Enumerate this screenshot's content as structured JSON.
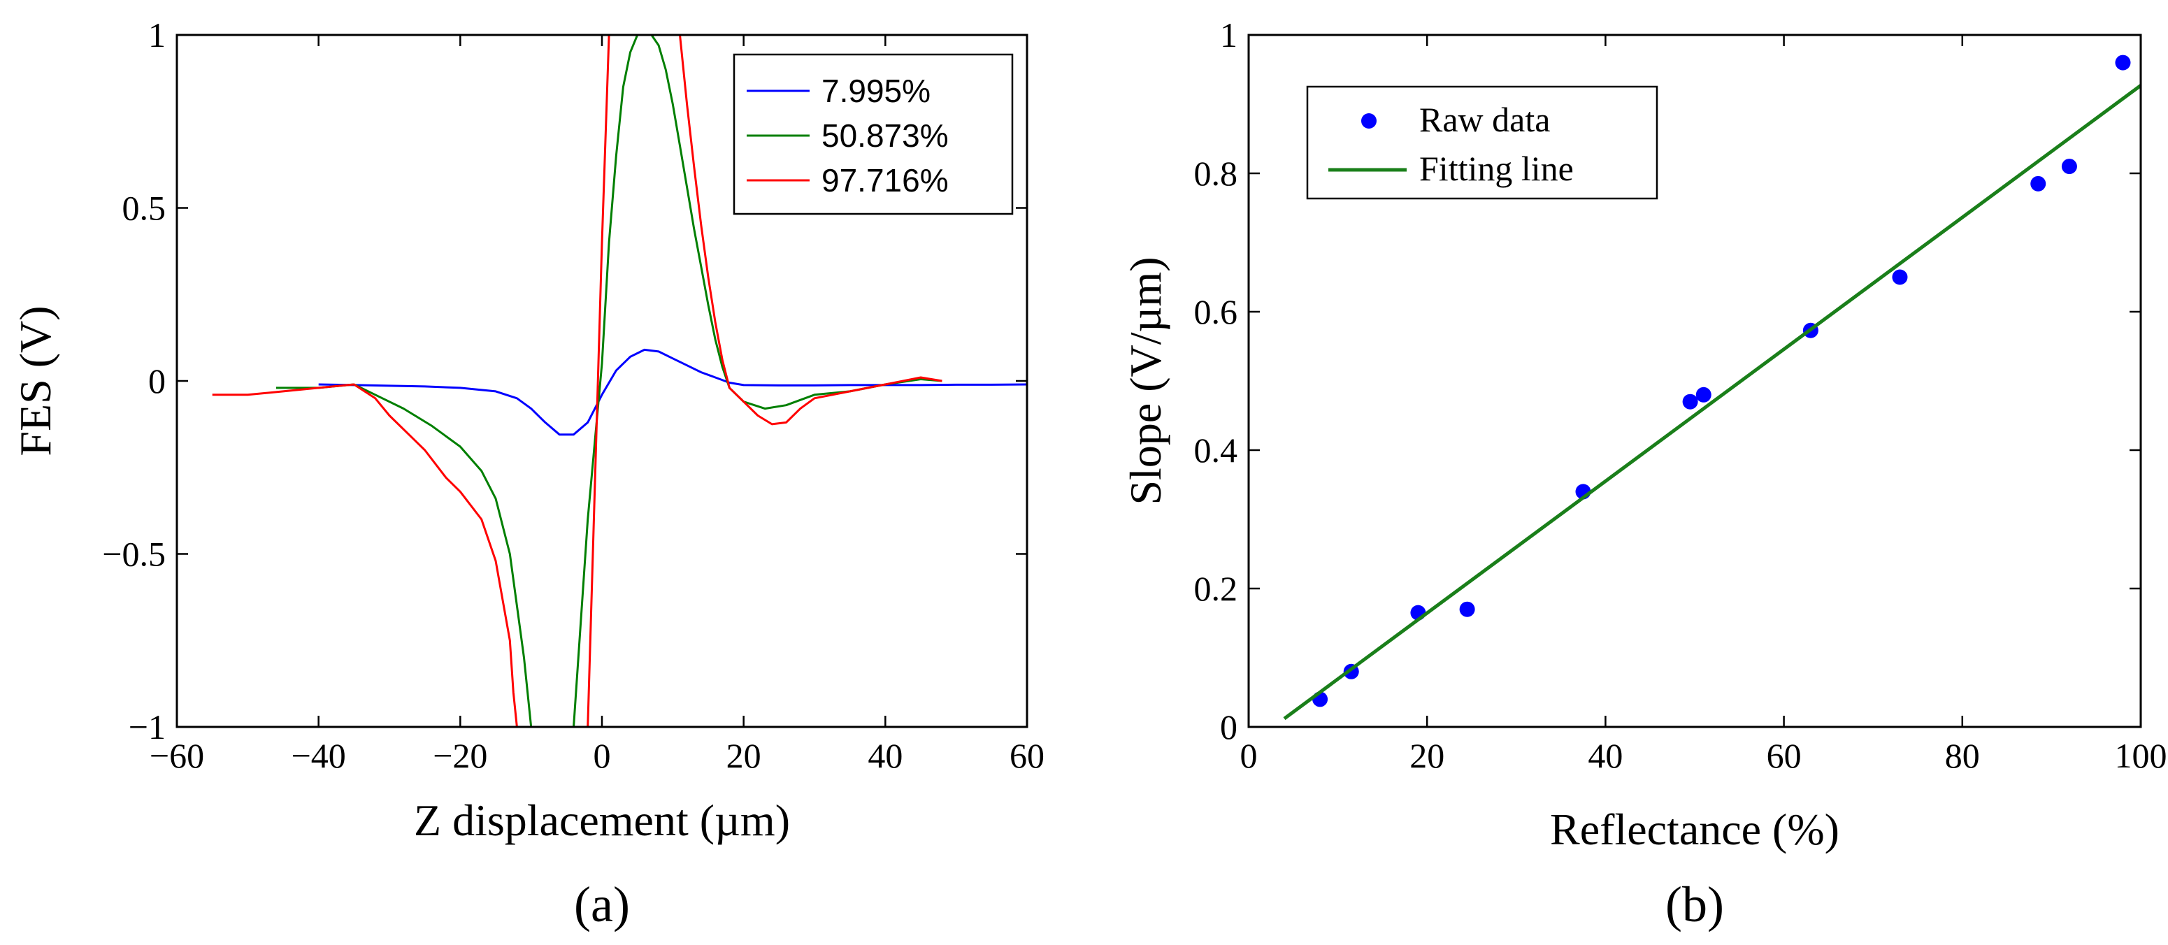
{
  "chart_data": [
    {
      "type": "line",
      "panel_label": "(a)",
      "title": "",
      "xlabel": "Z displacement (µm)",
      "ylabel": "FES (V)",
      "xlim": [
        -60,
        60
      ],
      "ylim": [
        -1,
        1
      ],
      "xticks": [
        -60,
        -40,
        -20,
        0,
        20,
        40,
        60
      ],
      "yticks": [
        -1,
        -0.5,
        0,
        0.5,
        1
      ],
      "xtick_labels": [
        "−60",
        "−40",
        "−20",
        "0",
        "20",
        "40",
        "60"
      ],
      "ytick_labels": [
        "−1",
        "−0.5",
        "0",
        "0.5",
        "1"
      ],
      "grid": false,
      "legend_position": "top-right",
      "series": [
        {
          "name": "7.995%",
          "color": "#0000ff",
          "x": [
            -40,
            -35,
            -30,
            -25,
            -20,
            -15,
            -12,
            -10,
            -8,
            -6,
            -4,
            -2,
            0,
            2,
            4,
            6,
            8,
            10,
            12,
            14,
            16,
            18,
            20,
            25,
            30,
            35,
            40,
            45,
            50,
            55,
            60
          ],
          "y": [
            -0.01,
            -0.012,
            -0.014,
            -0.016,
            -0.02,
            -0.03,
            -0.05,
            -0.08,
            -0.12,
            -0.155,
            -0.155,
            -0.12,
            -0.04,
            0.03,
            0.07,
            0.09,
            0.085,
            0.065,
            0.045,
            0.025,
            0.01,
            -0.005,
            -0.012,
            -0.013,
            -0.013,
            -0.012,
            -0.012,
            -0.012,
            -0.011,
            -0.011,
            -0.01
          ]
        },
        {
          "name": "50.873%",
          "color": "#007f00",
          "x": [
            -46,
            -40,
            -35,
            -32,
            -28,
            -24,
            -20,
            -17,
            -15,
            -13,
            -11,
            -10,
            -9,
            -6,
            -4,
            -3,
            -2,
            0,
            1,
            2,
            3,
            4,
            5,
            6,
            7,
            8,
            9,
            10,
            11,
            12,
            13,
            14,
            15,
            16,
            17,
            18,
            20,
            23,
            26,
            30,
            35,
            40,
            45,
            48
          ],
          "y": [
            -0.02,
            -0.02,
            -0.01,
            -0.04,
            -0.08,
            -0.13,
            -0.19,
            -0.26,
            -0.34,
            -0.5,
            -0.8,
            -1,
            -1,
            -1,
            -1,
            -0.7,
            -0.4,
            0.05,
            0.4,
            0.65,
            0.85,
            0.95,
            1,
            1,
            1,
            0.97,
            0.9,
            0.8,
            0.68,
            0.56,
            0.44,
            0.33,
            0.22,
            0.12,
            0.04,
            -0.02,
            -0.06,
            -0.08,
            -0.07,
            -0.04,
            -0.03,
            -0.01,
            0.005,
            0
          ]
        },
        {
          "name": "97.716%",
          "color": "#ff0000",
          "x": [
            -55,
            -50,
            -45,
            -40,
            -35,
            -32,
            -30,
            -28,
            -25,
            -22,
            -20,
            -17,
            -15,
            -13,
            -12.5,
            -12,
            -8,
            -4,
            -2,
            -1,
            0,
            1,
            2,
            4,
            6,
            8,
            10,
            11,
            12,
            13,
            14,
            15,
            16,
            17,
            18,
            20,
            22,
            24,
            26,
            28,
            30,
            35,
            40,
            45,
            48
          ],
          "y": [
            -0.04,
            -0.04,
            -0.03,
            -0.02,
            -0.01,
            -0.05,
            -0.1,
            -0.14,
            -0.2,
            -0.28,
            -0.32,
            -0.4,
            -0.52,
            -0.75,
            -0.9,
            -1,
            -1,
            -1,
            -1,
            -0.3,
            0.4,
            1,
            1,
            1,
            1,
            1,
            1,
            1,
            0.8,
            0.62,
            0.45,
            0.3,
            0.17,
            0.06,
            -0.02,
            -0.06,
            -0.1,
            -0.125,
            -0.12,
            -0.08,
            -0.05,
            -0.03,
            -0.01,
            0.01,
            0
          ]
        }
      ]
    },
    {
      "type": "scatter",
      "panel_label": "(b)",
      "title": "",
      "xlabel": "Reflectance (%)",
      "ylabel": "Slope (V/µm)",
      "xlim": [
        0,
        100
      ],
      "ylim": [
        0,
        1
      ],
      "xticks": [
        0,
        20,
        40,
        60,
        80,
        100
      ],
      "yticks": [
        0,
        0.2,
        0.4,
        0.6,
        0.8,
        1
      ],
      "xtick_labels": [
        "0",
        "20",
        "40",
        "60",
        "80",
        "100"
      ],
      "ytick_labels": [
        "0",
        "0.2",
        "0.4",
        "0.6",
        "0.8",
        "1"
      ],
      "grid": false,
      "legend_position": "top-left",
      "series": [
        {
          "name": "Raw data",
          "kind": "scatter",
          "color": "#0000ff",
          "x": [
            8,
            11.5,
            19,
            24.5,
            37.5,
            49.5,
            51,
            63,
            73,
            88.5,
            92,
            98
          ],
          "y": [
            0.04,
            0.08,
            0.165,
            0.17,
            0.34,
            0.47,
            0.48,
            0.573,
            0.65,
            0.785,
            0.81,
            0.96
          ]
        },
        {
          "name": "Fitting line",
          "kind": "line",
          "color": "#1a7f1a",
          "x": [
            4,
            100
          ],
          "y": [
            0.012,
            0.927
          ]
        }
      ]
    }
  ]
}
